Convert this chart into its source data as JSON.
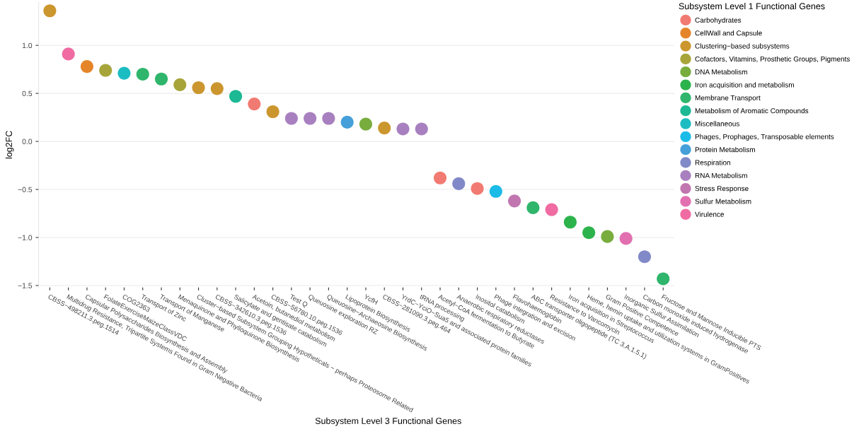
{
  "chart_data": {
    "type": "scatter",
    "xlabel": "Subsystem Level 3 Functional Genes",
    "ylabel": "log2FC",
    "legend_title": "Subsystem Level 1 Functional Genes",
    "legend": "right",
    "grid": "y",
    "marker": "circle",
    "categories": [
      "CBSS−498211.3.peg.1514",
      "Multidrug Resistance, Tripartite Systems Found in Gram Negative Bacteria",
      "Capsular Polysaccharides Biosynthesis and Assembly",
      "FolateExerciseMaizeClassVDC",
      "COG2363",
      "Transport of Zinc",
      "Transport of Manganese",
      "Menaquinone and Phylloquinone Biosynthesis",
      "Cluster−based Subsystem Grouping Hypotheticals − perhaps Proteosome Related",
      "CBSS−342610.3.peg.1536",
      "Salicylate and gentisate catabolism",
      "Acetoin, butanediol metabolism",
      "CBSS−56780.10.peg.1536",
      "Test Q",
      "Queuosine exploration RZ",
      "Queuosine−Archaeosine Biosynthesis",
      "Lipoprotein Biosynthesis",
      "YcfH",
      "CBSS−281090.3.peg.464",
      "YrdC−YciO−Sua5 and associated protein families",
      "tRNA processing",
      "Acetyl−CoA fermentation to Butyrate",
      "Anaerobic respiratory reductases",
      "Inositol catabolism",
      "Phage integration and excision",
      "Flavohaemoglobin",
      "ABC transporter oligopeptide (TC 3.A.1.5.1)",
      "Resistance to Vancomycin",
      "Iron acquisition in Streptococcus",
      "Heme, hemin uptake and utilization systems in GramPositives",
      "Gram Positive Competence",
      "Inorganic Sulfur Assimilation",
      "Carbon monoxide induced hydrogenase",
      "Fructose and Mannose Inducible PTS"
    ],
    "ylim": [
      -1.52,
      1.45
    ],
    "yticks": [
      {
        "value": -1.5,
        "label": "−1.5"
      },
      {
        "value": -1.0,
        "label": "−1.0"
      },
      {
        "value": -0.5,
        "label": "−0.5"
      },
      {
        "value": 0.0,
        "label": "0.0"
      },
      {
        "value": 0.5,
        "label": "0.5"
      },
      {
        "value": 1.0,
        "label": "1.0"
      }
    ],
    "series": [
      {
        "name": "Carbohydrates",
        "color": "#f17b72",
        "x": [
          "Acetoin, butanediol metabolism",
          "Acetyl−CoA fermentation to Butyrate",
          "Inositol catabolism"
        ],
        "values": [
          0.39,
          -0.38,
          -0.49
        ]
      },
      {
        "name": "CellWall and Capsule",
        "color": "#e5852a",
        "x": [
          "Capsular Polysaccharides Biosynthesis and Assembly"
        ],
        "values": [
          0.78
        ]
      },
      {
        "name": "Clustering−based subsystems",
        "color": "#cc962e",
        "x": [
          "CBSS−498211.3.peg.1514",
          "Cluster−based Subsystem Grouping Hypotheticals − perhaps Proteosome Related",
          "CBSS−342610.3.peg.1536",
          "CBSS−56780.10.peg.1536",
          "CBSS−281090.3.peg.464"
        ],
        "values": [
          1.36,
          0.56,
          0.55,
          0.31,
          0.14
        ]
      },
      {
        "name": "Cofactors, Vitamins, Prosthetic Groups, Pigments",
        "color": "#a7a53a",
        "x": [
          "FolateExerciseMaizeClassVDC",
          "Menaquinone and Phylloquinone Biosynthesis"
        ],
        "values": [
          0.74,
          0.59
        ]
      },
      {
        "name": "DNA Metabolism",
        "color": "#78ad3e",
        "x": [
          "YcfH",
          "Gram Positive Competence"
        ],
        "values": [
          0.18,
          -0.99
        ]
      },
      {
        "name": "Iron acquisition and metabolism",
        "color": "#2db34c",
        "x": [
          "Iron acquisition in Streptococcus",
          "Heme, hemin uptake and utilization systems in GramPositives"
        ],
        "values": [
          -0.84,
          -0.95
        ]
      },
      {
        "name": "Membrane Transport",
        "color": "#2fb56c",
        "x": [
          "Transport of Zinc",
          "Transport of Manganese",
          "ABC transporter oligopeptide (TC 3.A.1.5.1)",
          "Fructose and Mannose Inducible PTS"
        ],
        "values": [
          0.7,
          0.65,
          -0.69,
          -1.43
        ]
      },
      {
        "name": "Metabolism of Aromatic Compounds",
        "color": "#1db894",
        "x": [
          "Salicylate and gentisate catabolism"
        ],
        "values": [
          0.47
        ]
      },
      {
        "name": "Miscellaneous",
        "color": "#1cbdc2",
        "x": [
          "COG2363"
        ],
        "values": [
          0.71
        ]
      },
      {
        "name": "Phages, Prophages, Transposable elements",
        "color": "#1bbbe8",
        "x": [
          "Phage integration and excision"
        ],
        "values": [
          -0.52
        ]
      },
      {
        "name": "Protein Metabolism",
        "color": "#45a0da",
        "x": [
          "Lipoprotein Biosynthesis"
        ],
        "values": [
          0.2
        ]
      },
      {
        "name": "Respiration",
        "color": "#8289c8",
        "x": [
          "Anaerobic respiratory reductases",
          "Carbon monoxide induced hydrogenase"
        ],
        "values": [
          -0.44,
          -1.2
        ]
      },
      {
        "name": "RNA Metabolism",
        "color": "#a880c0",
        "x": [
          "Test Q",
          "Queuosine exploration RZ",
          "Queuosine−Archaeosine Biosynthesis",
          "YrdC−YciO−Sua5 and associated protein families",
          "tRNA processing"
        ],
        "values": [
          0.24,
          0.24,
          0.24,
          0.13,
          0.13
        ]
      },
      {
        "name": "Stress Response",
        "color": "#c176b0",
        "x": [
          "Flavohaemoglobin"
        ],
        "values": [
          -0.62
        ]
      },
      {
        "name": "Sulfur Metabolism",
        "color": "#e26fb0",
        "x": [
          "Inorganic Sulfur Assimilation"
        ],
        "values": [
          -1.01
        ]
      },
      {
        "name": "Virulence",
        "color": "#f06ba2",
        "x": [
          "Multidrug Resistance, Tripartite Systems Found in Gram Negative Bacteria",
          "Resistance to Vancomycin"
        ],
        "values": [
          0.91,
          -0.71
        ]
      }
    ]
  }
}
